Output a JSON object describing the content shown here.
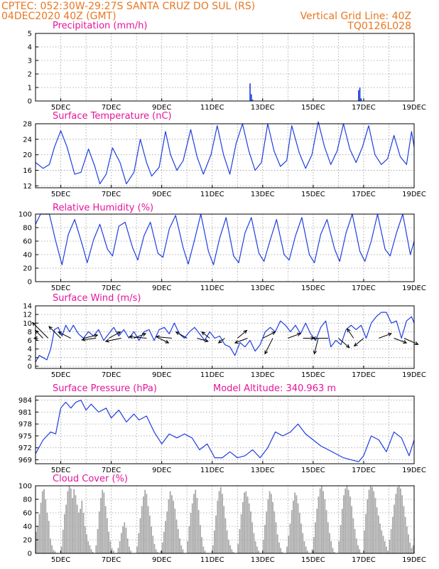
{
  "header": {
    "line1_left": "CPTEC:   052:30W-29:27S   SANTA CRUZ DO SUL (RS)",
    "line2_left": "04DEC2020 40Z (GMT)",
    "line2_right": "Vertical Grid Line: 40Z",
    "line3_right": "TQ0126L028"
  },
  "colors": {
    "header": "#e87722",
    "title": "#e6149b",
    "line": "#1f3ee0",
    "cloud": "#a9a9a9"
  },
  "chart_data": [
    {
      "type": "bar",
      "title": "Precipitation (mm/h)",
      "x_tick_labels": [
        "5DEC",
        "7DEC",
        "9DEC",
        "11DEC",
        "13DEC",
        "15DEC",
        "17DEC",
        "19DEC"
      ],
      "ylim": [
        0,
        5
      ],
      "y_ticks": [
        0,
        1,
        2,
        3,
        4,
        5
      ],
      "grid": true,
      "x_unit": "day of December 2020",
      "x_range": [
        4.0,
        19.0
      ],
      "bars": [
        {
          "x": 12.5,
          "value": 1.3
        },
        {
          "x": 12.55,
          "value": 0.5
        },
        {
          "x": 12.6,
          "value": 0.1
        },
        {
          "x": 16.8,
          "value": 0.8
        },
        {
          "x": 16.85,
          "value": 1.0
        },
        {
          "x": 16.9,
          "value": 0.2
        }
      ]
    },
    {
      "type": "line",
      "title": "Surface Temperature (nC)",
      "x_tick_labels": [
        "5DEC",
        "7DEC",
        "9DEC",
        "11DEC",
        "13DEC",
        "15DEC",
        "17DEC",
        "19DEC"
      ],
      "ylim": [
        11.5,
        28
      ],
      "y_ticks": [
        12,
        16,
        20,
        24,
        28
      ],
      "grid": true,
      "x_range": [
        4.0,
        19.0
      ],
      "x": [
        4.0,
        4.3,
        4.55,
        4.75,
        5.0,
        5.25,
        5.55,
        5.8,
        6.1,
        6.35,
        6.55,
        6.8,
        7.05,
        7.35,
        7.6,
        7.9,
        8.15,
        8.4,
        8.6,
        8.9,
        9.15,
        9.35,
        9.6,
        9.85,
        10.15,
        10.4,
        10.65,
        10.95,
        11.2,
        11.45,
        11.7,
        11.95,
        12.2,
        12.45,
        12.7,
        12.95,
        13.2,
        13.45,
        13.7,
        13.95,
        14.15,
        14.45,
        14.7,
        14.95,
        15.2,
        15.45,
        15.7,
        15.95,
        16.2,
        16.45,
        16.7,
        16.95,
        17.2,
        17.45,
        17.7,
        17.95,
        18.2,
        18.45,
        18.7,
        18.9,
        19.0
      ],
      "series": [
        {
          "values": [
            18.0,
            16.5,
            17.5,
            22.0,
            26.2,
            22.0,
            15.0,
            15.5,
            21.5,
            17.0,
            12.5,
            15.0,
            21.8,
            18.0,
            12.5,
            15.5,
            24.0,
            18.0,
            14.5,
            16.8,
            26.0,
            20.0,
            16.0,
            18.5,
            26.5,
            19.5,
            15.0,
            20.0,
            27.5,
            20.0,
            15.0,
            23.0,
            28.0,
            21.0,
            16.0,
            18.0,
            28.0,
            21.0,
            17.0,
            18.5,
            27.5,
            20.5,
            16.5,
            20.0,
            28.5,
            22.0,
            17.5,
            21.0,
            28.0,
            21.5,
            18.0,
            22.0,
            27.5,
            20.0,
            17.5,
            19.0,
            25.0,
            19.5,
            17.5,
            26.0,
            22.0
          ]
        }
      ]
    },
    {
      "type": "line",
      "title": "Relative Humidity (%)",
      "x_tick_labels": [
        "5DEC",
        "7DEC",
        "9DEC",
        "11DEC",
        "13DEC",
        "15DEC",
        "17DEC",
        "19DEC"
      ],
      "ylim": [
        0,
        100
      ],
      "y_ticks": [
        0,
        20,
        40,
        60,
        80,
        100
      ],
      "grid": true,
      "x_range": [
        4.0,
        19.0
      ],
      "x": [
        4.0,
        4.2,
        4.55,
        4.8,
        5.05,
        5.3,
        5.55,
        5.85,
        6.05,
        6.3,
        6.55,
        6.85,
        7.05,
        7.3,
        7.55,
        7.85,
        8.05,
        8.3,
        8.55,
        8.85,
        9.05,
        9.3,
        9.55,
        9.85,
        10.05,
        10.3,
        10.55,
        10.85,
        11.05,
        11.3,
        11.55,
        11.85,
        12.05,
        12.3,
        12.55,
        12.85,
        13.05,
        13.3,
        13.55,
        13.85,
        14.05,
        14.3,
        14.55,
        14.85,
        15.05,
        15.3,
        15.55,
        15.85,
        16.05,
        16.3,
        16.55,
        16.85,
        17.05,
        17.3,
        17.55,
        17.85,
        18.05,
        18.3,
        18.55,
        18.85,
        19.0
      ],
      "series": [
        {
          "values": [
            85,
            100,
            100,
            60,
            25,
            70,
            92,
            55,
            28,
            62,
            85,
            48,
            38,
            82,
            88,
            50,
            32,
            68,
            88,
            42,
            36,
            78,
            98,
            50,
            26,
            62,
            100,
            45,
            25,
            65,
            95,
            38,
            28,
            72,
            95,
            42,
            30,
            62,
            92,
            40,
            32,
            68,
            95,
            40,
            28,
            70,
            92,
            48,
            30,
            72,
            100,
            45,
            30,
            60,
            100,
            48,
            38,
            72,
            100,
            40,
            60
          ]
        }
      ]
    },
    {
      "type": "line",
      "title": "Surface Wind (m/s)",
      "x_tick_labels": [
        "5DEC",
        "7DEC",
        "9DEC",
        "11DEC",
        "13DEC",
        "15DEC",
        "17DEC",
        "19DEC"
      ],
      "ylim": [
        -0.5,
        14
      ],
      "y_ticks": [
        0,
        2,
        4,
        6,
        8,
        10,
        12,
        14
      ],
      "grid": true,
      "x_range": [
        4.0,
        19.0
      ],
      "x": [
        4.0,
        4.15,
        4.3,
        4.45,
        4.6,
        4.75,
        4.9,
        5.05,
        5.2,
        5.35,
        5.5,
        5.7,
        5.9,
        6.1,
        6.3,
        6.5,
        6.7,
        6.9,
        7.1,
        7.3,
        7.5,
        7.7,
        7.9,
        8.1,
        8.3,
        8.5,
        8.7,
        8.9,
        9.1,
        9.3,
        9.5,
        9.7,
        9.9,
        10.1,
        10.3,
        10.5,
        10.7,
        10.9,
        11.1,
        11.3,
        11.5,
        11.7,
        11.9,
        12.1,
        12.3,
        12.5,
        12.7,
        12.9,
        13.1,
        13.3,
        13.5,
        13.7,
        13.9,
        14.1,
        14.3,
        14.5,
        14.7,
        14.9,
        15.1,
        15.3,
        15.5,
        15.7,
        15.9,
        16.1,
        16.3,
        16.5,
        16.7,
        16.9,
        17.1,
        17.3,
        17.5,
        17.7,
        17.9,
        18.1,
        18.3,
        18.5,
        18.7,
        18.9,
        19.0
      ],
      "series": [
        {
          "values": [
            1.0,
            2.5,
            2.0,
            1.5,
            4.0,
            8.5,
            9.0,
            7.0,
            9.5,
            8.0,
            9.5,
            7.5,
            6.5,
            8.0,
            7.0,
            8.5,
            6.0,
            7.5,
            9.0,
            7.0,
            8.5,
            6.5,
            8.0,
            6.0,
            8.0,
            8.5,
            6.0,
            8.5,
            9.0,
            7.5,
            10.0,
            7.5,
            6.5,
            8.0,
            9.0,
            7.5,
            6.0,
            8.0,
            6.5,
            7.0,
            5.0,
            4.5,
            2.5,
            5.5,
            4.5,
            6.0,
            3.5,
            5.0,
            8.0,
            9.0,
            8.0,
            10.5,
            9.5,
            8.0,
            9.5,
            7.5,
            10.0,
            7.5,
            6.0,
            9.0,
            10.5,
            4.5,
            6.0,
            5.0,
            8.5,
            9.5,
            8.5,
            9.5,
            6.5,
            10.0,
            11.5,
            12.5,
            12.5,
            10.0,
            10.5,
            6.5,
            10.5,
            11.5,
            10.0
          ]
        }
      ],
      "wind_barbs": [
        {
          "x": 4.1,
          "u": -0.5,
          "v": 0.0
        },
        {
          "x": 4.3,
          "u": -1.0,
          "v": 1.0
        },
        {
          "x": 4.5,
          "u": -2.0,
          "v": 2.0
        },
        {
          "x": 5.0,
          "u": -1.5,
          "v": 1.5
        },
        {
          "x": 5.4,
          "u": -1.6,
          "v": 0.8
        },
        {
          "x": 5.9,
          "u": 1.8,
          "v": 0.4
        },
        {
          "x": 6.4,
          "u": -1.8,
          "v": -0.2
        },
        {
          "x": 6.9,
          "u": 1.5,
          "v": 0.8
        },
        {
          "x": 7.4,
          "u": -2.0,
          "v": -0.4
        },
        {
          "x": 7.9,
          "u": 1.5,
          "v": 0.6
        },
        {
          "x": 8.4,
          "u": -2.2,
          "v": 0.2
        },
        {
          "x": 8.9,
          "u": 1.2,
          "v": -0.6
        },
        {
          "x": 9.4,
          "u": -2.0,
          "v": 0.2
        },
        {
          "x": 10.0,
          "u": -1.4,
          "v": 0.8
        },
        {
          "x": 10.4,
          "u": 1.4,
          "v": -0.4
        },
        {
          "x": 10.9,
          "u": -1.0,
          "v": 0.8
        },
        {
          "x": 11.5,
          "u": -0.8,
          "v": -0.6
        },
        {
          "x": 12.0,
          "u": 1.2,
          "v": 1.0
        },
        {
          "x": 12.4,
          "u": -1.6,
          "v": -0.6
        },
        {
          "x": 13.0,
          "u": 1.6,
          "v": 0.8
        },
        {
          "x": 13.4,
          "u": -1.0,
          "v": -2.0
        },
        {
          "x": 14.0,
          "u": 1.6,
          "v": 0.6
        },
        {
          "x": 14.6,
          "u": 1.4,
          "v": 0.0
        },
        {
          "x": 15.2,
          "u": -0.5,
          "v": -2.0
        },
        {
          "x": 15.6,
          "u": -2.0,
          "v": 0.0
        },
        {
          "x": 16.0,
          "u": 1.4,
          "v": -1.2
        },
        {
          "x": 16.6,
          "u": -0.8,
          "v": 1.2
        },
        {
          "x": 17.0,
          "u": -1.2,
          "v": -1.0
        },
        {
          "x": 17.6,
          "u": 1.6,
          "v": 0.6
        },
        {
          "x": 18.2,
          "u": 1.6,
          "v": -0.6
        },
        {
          "x": 18.6,
          "u": 1.8,
          "v": -0.8
        }
      ]
    },
    {
      "type": "line",
      "title": "Surface Pressure (hPa)",
      "subtitle": "Model Altitude: 340.963 m",
      "x_tick_labels": [
        "5DEC",
        "7DEC",
        "9DEC",
        "11DEC",
        "13DEC",
        "15DEC",
        "17DEC",
        "19DEC"
      ],
      "ylim": [
        968,
        985
      ],
      "y_ticks": [
        969,
        972,
        975,
        978,
        981,
        984
      ],
      "grid": true,
      "x_range": [
        4.0,
        19.0
      ],
      "x": [
        4.0,
        4.3,
        4.6,
        4.8,
        5.0,
        5.2,
        5.4,
        5.6,
        5.8,
        6.0,
        6.2,
        6.5,
        6.8,
        7.0,
        7.3,
        7.6,
        7.9,
        8.1,
        8.4,
        8.7,
        9.0,
        9.3,
        9.6,
        9.9,
        10.2,
        10.5,
        10.8,
        11.1,
        11.4,
        11.7,
        12.0,
        12.3,
        12.6,
        12.9,
        13.2,
        13.5,
        13.8,
        14.1,
        14.4,
        14.7,
        15.0,
        15.3,
        15.6,
        15.9,
        16.2,
        16.5,
        16.8,
        17.0,
        17.3,
        17.6,
        17.9,
        18.2,
        18.5,
        18.8,
        19.0
      ],
      "series": [
        {
          "values": [
            970.5,
            974.0,
            976.0,
            975.5,
            982.0,
            983.5,
            982.0,
            983.5,
            984.0,
            981.5,
            983.0,
            981.0,
            982.0,
            979.5,
            981.5,
            978.5,
            980.5,
            979.0,
            980.0,
            976.0,
            973.0,
            975.5,
            974.5,
            975.5,
            974.5,
            971.5,
            973.0,
            969.5,
            969.5,
            971.0,
            969.5,
            970.0,
            971.5,
            969.5,
            972.0,
            976.0,
            975.0,
            976.0,
            978.0,
            975.5,
            974.0,
            972.5,
            971.5,
            970.5,
            969.5,
            969.0,
            968.5,
            970.0,
            975.0,
            974.0,
            971.0,
            976.0,
            974.5,
            970.0,
            974.0
          ]
        }
      ]
    },
    {
      "type": "bar",
      "title": "Cloud Cover (%)",
      "x_tick_labels": [
        "5DEC",
        "7DEC",
        "9DEC",
        "11DEC",
        "13DEC",
        "15DEC",
        "17DEC",
        "19DEC"
      ],
      "ylim": [
        0,
        100
      ],
      "y_ticks": [
        0,
        20,
        40,
        60,
        80,
        100
      ],
      "grid": true,
      "x_range": [
        4.0,
        19.0
      ],
      "day_start": 4.0,
      "bar_step_days": 0.0625,
      "values": [
        32,
        40,
        58,
        75,
        92,
        95,
        80,
        60,
        48,
        22,
        12,
        5,
        3,
        0,
        0,
        0,
        10,
        35,
        58,
        72,
        92,
        100,
        96,
        82,
        95,
        86,
        72,
        60,
        66,
        78,
        60,
        40,
        28,
        18,
        12,
        6,
        2,
        0,
        12,
        36,
        62,
        82,
        94,
        90,
        70,
        52,
        32,
        18,
        8,
        4,
        0,
        0,
        8,
        18,
        30,
        40,
        46,
        38,
        22,
        10,
        4,
        0,
        0,
        0,
        10,
        30,
        52,
        70,
        84,
        94,
        88,
        70,
        56,
        40,
        26,
        14,
        6,
        2,
        0,
        4,
        16,
        32,
        48,
        62,
        80,
        92,
        86,
        78,
        66,
        50,
        36,
        22,
        12,
        6,
        0,
        0,
        18,
        40,
        60,
        74,
        88,
        94,
        82,
        64,
        42,
        24,
        10,
        4,
        0,
        0,
        0,
        0,
        12,
        34,
        56,
        78,
        92,
        98,
        88,
        70,
        52,
        34,
        20,
        12,
        6,
        2,
        0,
        0,
        14,
        36,
        58,
        76,
        90,
        92,
        84,
        74,
        62,
        46,
        30,
        18,
        10,
        4,
        0,
        0,
        20,
        42,
        62,
        80,
        92,
        88,
        76,
        62,
        46,
        28,
        16,
        8,
        2,
        0,
        0,
        10,
        26,
        44,
        64,
        78,
        90,
        86,
        74,
        60,
        44,
        30,
        18,
        10,
        4,
        0,
        0,
        6,
        24,
        46,
        66,
        84,
        96,
        100,
        92,
        80,
        64,
        46,
        30,
        18,
        8,
        2,
        0,
        0,
        18,
        42,
        66,
        86,
        96,
        100,
        94,
        84,
        70,
        52,
        36,
        22,
        12,
        6,
        0,
        0,
        34,
        58,
        80,
        94,
        100,
        98,
        92,
        82,
        68,
        56,
        44,
        34,
        26,
        18,
        10,
        4,
        20,
        36,
        54,
        72,
        88,
        98,
        100,
        96,
        86,
        70,
        54,
        40,
        28,
        16,
        8,
        12,
        24,
        40,
        56,
        70,
        84,
        92,
        78,
        64,
        50,
        40
      ]
    }
  ]
}
